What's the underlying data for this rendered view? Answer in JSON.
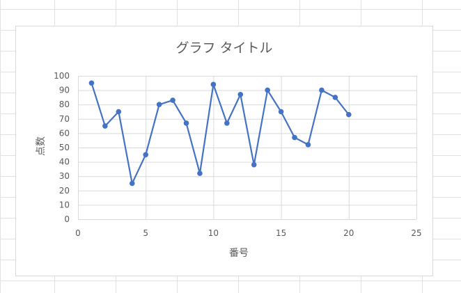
{
  "chart_data": {
    "type": "line",
    "title": "グラフ タイトル",
    "xlabel": "番号",
    "ylabel": "点数",
    "xlim": [
      0,
      25
    ],
    "ylim": [
      0,
      100
    ],
    "xticks": [
      0,
      5,
      10,
      15,
      20,
      25
    ],
    "yticks": [
      0,
      10,
      20,
      30,
      40,
      50,
      60,
      70,
      80,
      90,
      100
    ],
    "grid": true,
    "markers": true,
    "series": [
      {
        "color": "#4472c4",
        "x": [
          1,
          2,
          3,
          4,
          5,
          6,
          7,
          8,
          9,
          10,
          11,
          12,
          13,
          14,
          15,
          16,
          17,
          18,
          19,
          20
        ],
        "y": [
          95,
          65,
          75,
          25,
          45,
          80,
          83,
          67,
          32,
          94,
          67,
          87,
          38,
          90,
          75,
          57,
          52,
          90,
          85,
          73
        ]
      }
    ]
  }
}
